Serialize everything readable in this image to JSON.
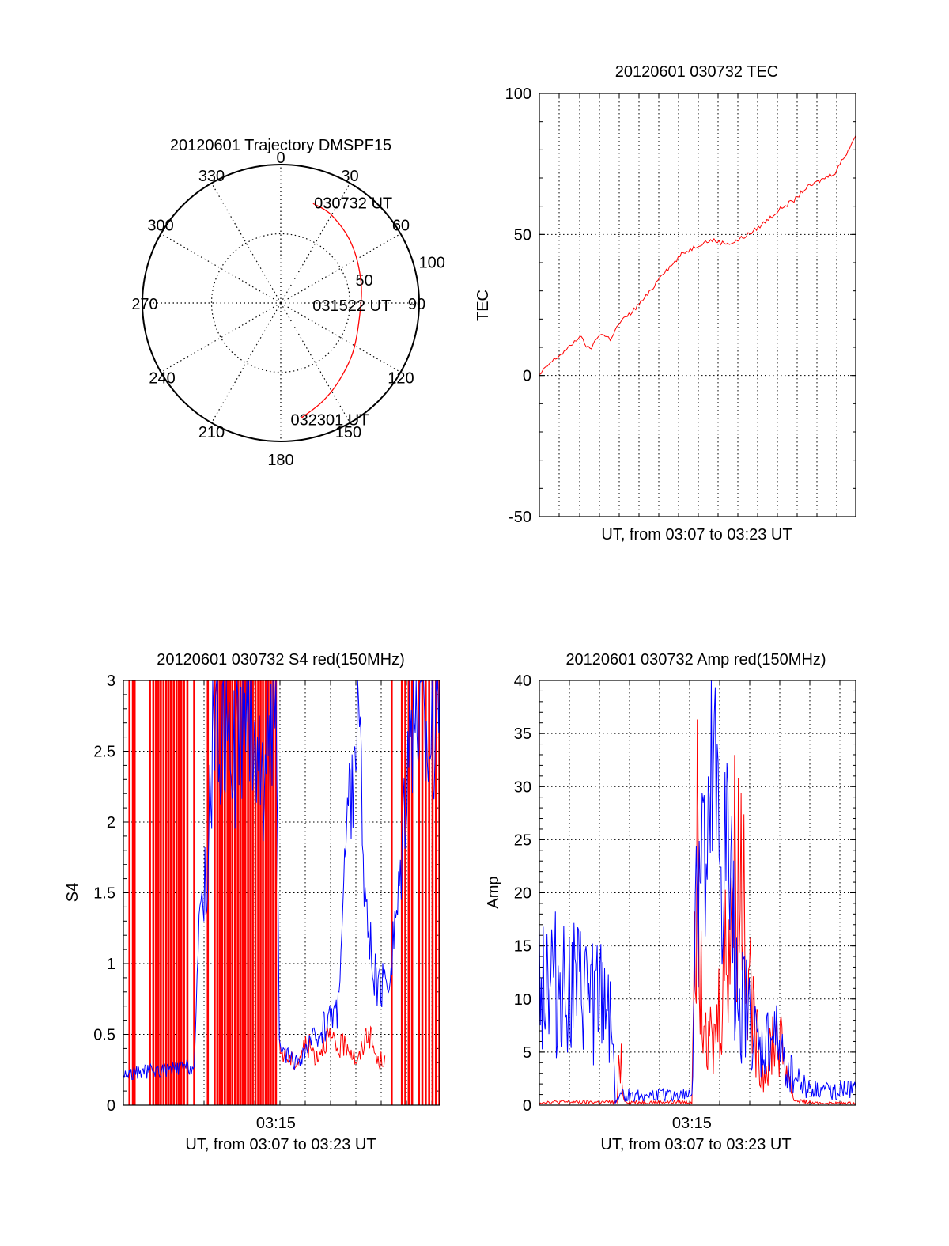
{
  "chart_data": [
    {
      "type": "polar",
      "title": "20120601 Trajectory DMSPF15",
      "angle_ticks": [
        "0",
        "30",
        "60",
        "90",
        "120",
        "150",
        "180",
        "210",
        "240",
        "270",
        "300",
        "330"
      ],
      "radial_ticks": [
        "50",
        "100"
      ],
      "rlim": [
        0,
        100
      ],
      "grid": true,
      "series": [
        {
          "color": "#ff0000",
          "points": [
            {
              "az": 18,
              "el": 22
            },
            {
              "az": 30,
              "el": 24
            },
            {
              "az": 50,
              "el": 30
            },
            {
              "az": 75,
              "el": 36
            },
            {
              "az": 100,
              "el": 38
            },
            {
              "az": 125,
              "el": 33
            },
            {
              "az": 145,
              "el": 26
            },
            {
              "az": 158,
              "el": 20
            },
            {
              "az": 170,
              "el": 14
            }
          ]
        }
      ],
      "annotations": [
        {
          "text": "030732 UT",
          "az": 23,
          "el": 22
        },
        {
          "text": "031522 UT",
          "az": 95,
          "el": 54
        },
        {
          "text": "032301 UT",
          "az": 173,
          "el": 14
        }
      ]
    },
    {
      "type": "line",
      "title": "20120601 030732 TEC",
      "xlabel": "UT, from 03:07 to 03:23 UT",
      "ylabel": "TEC",
      "xlim": [
        "03:07:32",
        "03:23:01"
      ],
      "ylim": [
        -50,
        100
      ],
      "yticks": [
        "100",
        "50",
        "0",
        "-50"
      ],
      "grid": true,
      "series": [
        {
          "color": "#ff0000",
          "x": [
            "03:07:32",
            "03:08:00",
            "03:08:30",
            "03:09:00",
            "03:09:30",
            "03:10:00",
            "03:10:30",
            "03:11:00",
            "03:11:30",
            "03:12:00",
            "03:12:30",
            "03:13:00",
            "03:13:30",
            "03:14:00",
            "03:14:30",
            "03:15:00",
            "03:15:30",
            "03:16:00",
            "03:16:30",
            "03:17:00",
            "03:17:30",
            "03:18:00",
            "03:18:30",
            "03:19:00",
            "03:19:30",
            "03:20:00",
            "03:20:30",
            "03:21:00",
            "03:21:30",
            "03:22:00",
            "03:22:30",
            "03:23:01"
          ],
          "y": [
            0,
            4,
            7,
            10,
            14,
            9,
            15,
            13,
            19,
            22,
            26,
            30,
            36,
            39,
            43,
            45,
            47,
            48,
            47,
            47,
            49,
            51,
            54,
            57,
            60,
            62,
            66,
            68,
            70,
            72,
            78,
            85
          ]
        }
      ]
    },
    {
      "type": "line",
      "title": "20120601 030732 S4 red(150MHz)",
      "xlabel": "UT, from 03:07 to 03:23 UT",
      "ylabel": "S4",
      "xlim": [
        "03:07:32",
        "03:23:01"
      ],
      "ylim": [
        0,
        3
      ],
      "xticks": [
        "03:15"
      ],
      "yticks": [
        "3",
        "2.5",
        "2",
        "1.5",
        "1",
        "0.5",
        "0"
      ],
      "grid": true,
      "series": [
        {
          "color": "#ff0000",
          "spikes_x": [
            "03:07:50",
            "03:08:00",
            "03:08:05",
            "03:08:50",
            "03:09:00",
            "03:09:08",
            "03:09:15",
            "03:09:22",
            "03:09:30",
            "03:09:38",
            "03:09:45",
            "03:09:52",
            "03:10:00",
            "03:10:08",
            "03:10:15",
            "03:10:22",
            "03:10:30",
            "03:10:40",
            "03:11:00",
            "03:11:40",
            "03:12:00",
            "03:12:08",
            "03:12:15",
            "03:12:22",
            "03:12:30",
            "03:12:38",
            "03:12:45",
            "03:12:52",
            "03:13:00",
            "03:13:08",
            "03:13:15",
            "03:13:22",
            "03:13:30",
            "03:13:38",
            "03:13:45",
            "03:13:52",
            "03:14:00",
            "03:14:08",
            "03:14:15",
            "03:14:22",
            "03:14:30",
            "03:14:38",
            "03:14:45",
            "03:14:52",
            "03:15:00",
            "03:20:40",
            "03:21:10",
            "03:21:20",
            "03:21:30",
            "03:21:40",
            "03:22:00",
            "03:22:10",
            "03:22:20",
            "03:22:30",
            "03:22:40",
            "03:22:50",
            "03:23:00"
          ],
          "x": [
            "03:15:10",
            "03:15:30",
            "03:16:00",
            "03:16:30",
            "03:17:00",
            "03:17:30",
            "03:18:00",
            "03:18:30",
            "03:19:00",
            "03:19:30",
            "03:20:00",
            "03:20:20"
          ],
          "y": [
            0.4,
            0.35,
            0.3,
            0.45,
            0.35,
            0.5,
            0.4,
            0.45,
            0.3,
            0.55,
            0.3,
            0.35
          ]
        },
        {
          "color": "#0000ff",
          "x": [
            "03:07:32",
            "03:08:00",
            "03:08:30",
            "03:09:00",
            "03:09:30",
            "03:10:00",
            "03:10:30",
            "03:11:00",
            "03:11:20",
            "03:11:40",
            "03:12:00",
            "03:12:20",
            "03:12:40",
            "03:13:00",
            "03:13:20",
            "03:13:40",
            "03:14:00",
            "03:14:20",
            "03:14:40",
            "03:15:00",
            "03:15:10",
            "03:15:30",
            "03:16:00",
            "03:16:30",
            "03:17:00",
            "03:17:30",
            "03:18:00",
            "03:18:30",
            "03:19:00",
            "03:19:30",
            "03:20:00",
            "03:20:30",
            "03:21:00",
            "03:21:30",
            "03:22:00",
            "03:22:30",
            "03:23:01"
          ],
          "y": [
            0.22,
            0.23,
            0.24,
            0.25,
            0.25,
            0.26,
            0.27,
            0.28,
            1.5,
            1.7,
            3.0,
            2.6,
            2.9,
            2.5,
            2.8,
            2.9,
            2.7,
            2.3,
            2.8,
            3.0,
            0.4,
            0.35,
            0.3,
            0.4,
            0.5,
            0.6,
            0.7,
            2.0,
            2.8,
            1.2,
            0.8,
            0.9,
            1.5,
            2.8,
            2.9,
            2.6,
            3.0
          ]
        }
      ]
    },
    {
      "type": "line",
      "title": "20120601 030732 Amp red(150MHz)",
      "xlabel": "UT, from 03:07 to 03:23 UT",
      "ylabel": "Amp",
      "xlim": [
        "03:07:32",
        "03:23:01"
      ],
      "ylim": [
        0,
        40
      ],
      "xticks": [
        "03:15"
      ],
      "yticks": [
        "40",
        "35",
        "30",
        "25",
        "20",
        "15",
        "10",
        "5",
        "0"
      ],
      "grid": true,
      "series": [
        {
          "color": "#ff0000",
          "x": [
            "03:07:32",
            "03:08:30",
            "03:09:30",
            "03:10:30",
            "03:11:20",
            "03:11:30",
            "03:11:40",
            "03:12:00",
            "03:13:00",
            "03:14:00",
            "03:15:00",
            "03:15:10",
            "03:15:30",
            "03:16:00",
            "03:16:30",
            "03:17:00",
            "03:17:30",
            "03:18:00",
            "03:18:30",
            "03:19:00",
            "03:19:30",
            "03:20:00",
            "03:21:00",
            "03:22:00",
            "03:23:01"
          ],
          "y": [
            0.3,
            0.3,
            0.3,
            0.3,
            0.3,
            6,
            0.5,
            0.3,
            0.3,
            0.3,
            0.3,
            28,
            15,
            5,
            12,
            22,
            24,
            8,
            3,
            7,
            5,
            0.5,
            0.2,
            0.2,
            0.2
          ]
        },
        {
          "color": "#0000ff",
          "x": [
            "03:07:32",
            "03:08:00",
            "03:08:30",
            "03:09:00",
            "03:09:30",
            "03:10:00",
            "03:10:30",
            "03:11:00",
            "03:11:15",
            "03:11:30",
            "03:12:00",
            "03:13:00",
            "03:14:00",
            "03:14:30",
            "03:15:00",
            "03:15:10",
            "03:15:30",
            "03:15:45",
            "03:16:00",
            "03:16:20",
            "03:16:40",
            "03:17:00",
            "03:17:20",
            "03:17:40",
            "03:18:00",
            "03:18:20",
            "03:18:40",
            "03:19:00",
            "03:19:20",
            "03:19:40",
            "03:20:00",
            "03:20:30",
            "03:21:00",
            "03:21:30",
            "03:22:00",
            "03:22:30",
            "03:23:01"
          ],
          "y": [
            14,
            13,
            12,
            12,
            11,
            11,
            10,
            11,
            0.5,
            1,
            1,
            1,
            1,
            1,
            1,
            22,
            25,
            18,
            30,
            23,
            24,
            18,
            12,
            9,
            7,
            5,
            6,
            7,
            5,
            4,
            3,
            2,
            1.5,
            1.5,
            1.5,
            1.5,
            1.5
          ]
        }
      ]
    }
  ]
}
